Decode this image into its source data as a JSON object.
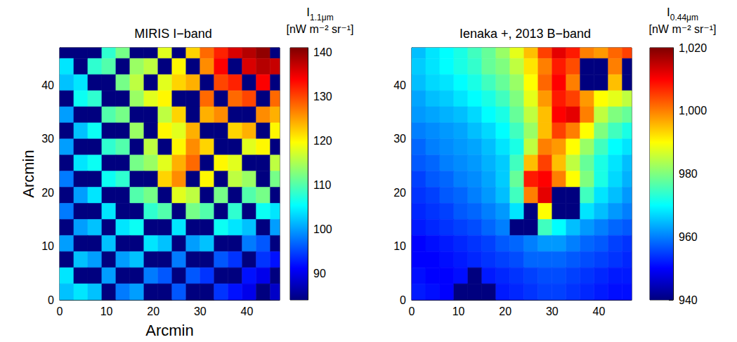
{
  "chart_data": [
    {
      "type": "heatmap",
      "title": "MIRIS I−band",
      "xlabel": "Arcmin",
      "ylabel": "Arcmin",
      "xlim": [
        0,
        47
      ],
      "ylim": [
        0,
        47
      ],
      "xticks": [
        0,
        10,
        20,
        30,
        40
      ],
      "yticks": [
        0,
        10,
        20,
        30,
        40
      ],
      "cells": {
        "x": [
          1.5,
          4.5,
          7.5,
          10.5,
          13.5,
          16.5,
          19.5,
          22.5,
          25.5,
          28.5,
          31.5,
          34.5,
          37.5,
          40.5,
          43.5,
          46.5
        ],
        "y": [
          46.5,
          43.5,
          40.5,
          37.5,
          34.5,
          31.5,
          28.5,
          25.5,
          22.5,
          19.5,
          16.5,
          13.5,
          10.5,
          7.5,
          4.5,
          1.5
        ],
        "z": [
          [
            84,
            84,
            84,
            108,
            112,
            84,
            84,
            118,
            84,
            122,
            128,
            132,
            136,
            138,
            140,
            84
          ],
          [
            104,
            84,
            108,
            110,
            84,
            114,
            116,
            84,
            120,
            84,
            126,
            134,
            84,
            136,
            138,
            137
          ],
          [
            102,
            104,
            84,
            84,
            112,
            116,
            84,
            118,
            122,
            124,
            84,
            130,
            132,
            84,
            134,
            84
          ],
          [
            84,
            106,
            108,
            84,
            84,
            114,
            118,
            120,
            84,
            84,
            128,
            84,
            128,
            130,
            84,
            128
          ],
          [
            100,
            84,
            84,
            110,
            112,
            84,
            84,
            116,
            122,
            84,
            124,
            126,
            84,
            84,
            126,
            124
          ],
          [
            84,
            102,
            106,
            84,
            84,
            114,
            84,
            120,
            118,
            124,
            84,
            84,
            122,
            124,
            84,
            120
          ],
          [
            100,
            84,
            84,
            108,
            110,
            84,
            116,
            84,
            120,
            126,
            122,
            84,
            84,
            118,
            120,
            84
          ],
          [
            84,
            104,
            106,
            84,
            84,
            112,
            114,
            118,
            124,
            128,
            84,
            120,
            118,
            84,
            84,
            116
          ],
          [
            98,
            84,
            84,
            106,
            108,
            84,
            84,
            122,
            126,
            84,
            120,
            84,
            116,
            114,
            84,
            112
          ],
          [
            84,
            100,
            104,
            84,
            84,
            110,
            112,
            84,
            118,
            116,
            84,
            112,
            84,
            110,
            112,
            84
          ],
          [
            98,
            84,
            84,
            104,
            84,
            84,
            108,
            110,
            84,
            112,
            110,
            84,
            108,
            84,
            106,
            104
          ],
          [
            84,
            100,
            102,
            84,
            104,
            106,
            84,
            84,
            104,
            84,
            84,
            106,
            104,
            102,
            84,
            100
          ],
          [
            100,
            84,
            84,
            102,
            84,
            84,
            104,
            102,
            84,
            100,
            102,
            84,
            84,
            98,
            96,
            84
          ],
          [
            84,
            102,
            100,
            84,
            100,
            102,
            84,
            84,
            98,
            84,
            84,
            96,
            94,
            84,
            94,
            92
          ],
          [
            104,
            84,
            84,
            100,
            84,
            84,
            98,
            96,
            84,
            96,
            94,
            84,
            84,
            92,
            90,
            84
          ],
          [
            102,
            104,
            102,
            84,
            98,
            100,
            84,
            84,
            96,
            84,
            84,
            94,
            92,
            90,
            84,
            88
          ]
        ]
      },
      "colorbar": {
        "symbol": "I",
        "subscript": "1.1μm",
        "unit": "[nW m⁻² sr⁻¹]",
        "range": [
          84,
          141
        ],
        "ticks": [
          90,
          100,
          110,
          120,
          130,
          140
        ]
      }
    },
    {
      "type": "heatmap",
      "title": "Ienaka +, 2013 B−band",
      "xlim": [
        0,
        47
      ],
      "ylim": [
        0,
        47
      ],
      "xticks": [
        0,
        10,
        20,
        30,
        40
      ],
      "yticks": [
        0,
        10,
        20,
        30,
        40
      ],
      "cells": {
        "x": [
          1.5,
          4.5,
          7.5,
          10.5,
          13.5,
          16.5,
          19.5,
          22.5,
          25.5,
          28.5,
          31.5,
          34.5,
          37.5,
          40.5,
          43.5,
          46.5
        ],
        "y": [
          46.5,
          43.5,
          40.5,
          37.5,
          34.5,
          31.5,
          28.5,
          25.5,
          22.5,
          19.5,
          16.5,
          13.5,
          10.5,
          7.5,
          4.5,
          1.5
        ],
        "z": [
          [
            965,
            968,
            970,
            972,
            975,
            978,
            982,
            988,
            995,
            1005,
            1012,
            1008,
            1000,
            998,
            1002,
            1005
          ],
          [
            966,
            968,
            970,
            972,
            974,
            978,
            980,
            985,
            992,
            1000,
            1008,
            1004,
            940,
            940,
            1000,
            940
          ],
          [
            965,
            967,
            968,
            970,
            972,
            975,
            978,
            982,
            990,
            1002,
            1010,
            1000,
            940,
            940,
            995,
            940
          ],
          [
            963,
            965,
            966,
            968,
            970,
            972,
            975,
            980,
            988,
            998,
            1008,
            1005,
            998,
            990,
            988,
            985
          ],
          [
            962,
            963,
            964,
            965,
            967,
            970,
            972,
            978,
            985,
            995,
            1010,
            1012,
            1000,
            985,
            980,
            978
          ],
          [
            960,
            961,
            962,
            963,
            965,
            967,
            970,
            975,
            982,
            995,
            1005,
            1000,
            990,
            980,
            975,
            972
          ],
          [
            958,
            960,
            961,
            962,
            963,
            965,
            968,
            972,
            985,
            1000,
            998,
            990,
            982,
            975,
            970,
            968
          ],
          [
            957,
            958,
            960,
            961,
            962,
            964,
            966,
            975,
            995,
            1005,
            995,
            985,
            978,
            972,
            968,
            965
          ],
          [
            955,
            957,
            958,
            960,
            961,
            963,
            966,
            978,
            1008,
            1010,
            1000,
            990,
            980,
            972,
            967,
            964
          ],
          [
            954,
            955,
            957,
            958,
            960,
            962,
            965,
            975,
            1000,
            1012,
            940,
            940,
            975,
            968,
            965,
            962
          ],
          [
            953,
            954,
            955,
            957,
            958,
            960,
            962,
            968,
            940,
            990,
            940,
            940,
            968,
            965,
            962,
            960
          ],
          [
            952,
            953,
            954,
            955,
            956,
            958,
            960,
            940,
            940,
            975,
            970,
            965,
            962,
            960,
            958,
            957
          ],
          [
            950,
            951,
            952,
            953,
            954,
            955,
            957,
            958,
            960,
            962,
            962,
            960,
            958,
            957,
            955,
            954
          ],
          [
            950,
            950,
            951,
            952,
            953,
            954,
            955,
            956,
            958,
            958,
            958,
            957,
            956,
            955,
            954,
            953
          ],
          [
            951,
            950,
            950,
            951,
            940,
            952,
            953,
            954,
            955,
            956,
            956,
            955,
            954,
            953,
            952,
            952
          ],
          [
            952,
            951,
            950,
            940,
            940,
            940,
            952,
            953,
            954,
            955,
            955,
            954,
            953,
            952,
            951,
            951
          ]
        ]
      },
      "colorbar": {
        "symbol": "I",
        "subscript": "0.44μm",
        "unit": "[nW m⁻² sr⁻¹]",
        "range": [
          940,
          1020
        ],
        "ticks": [
          940,
          960,
          980,
          1000,
          1020
        ]
      }
    }
  ]
}
